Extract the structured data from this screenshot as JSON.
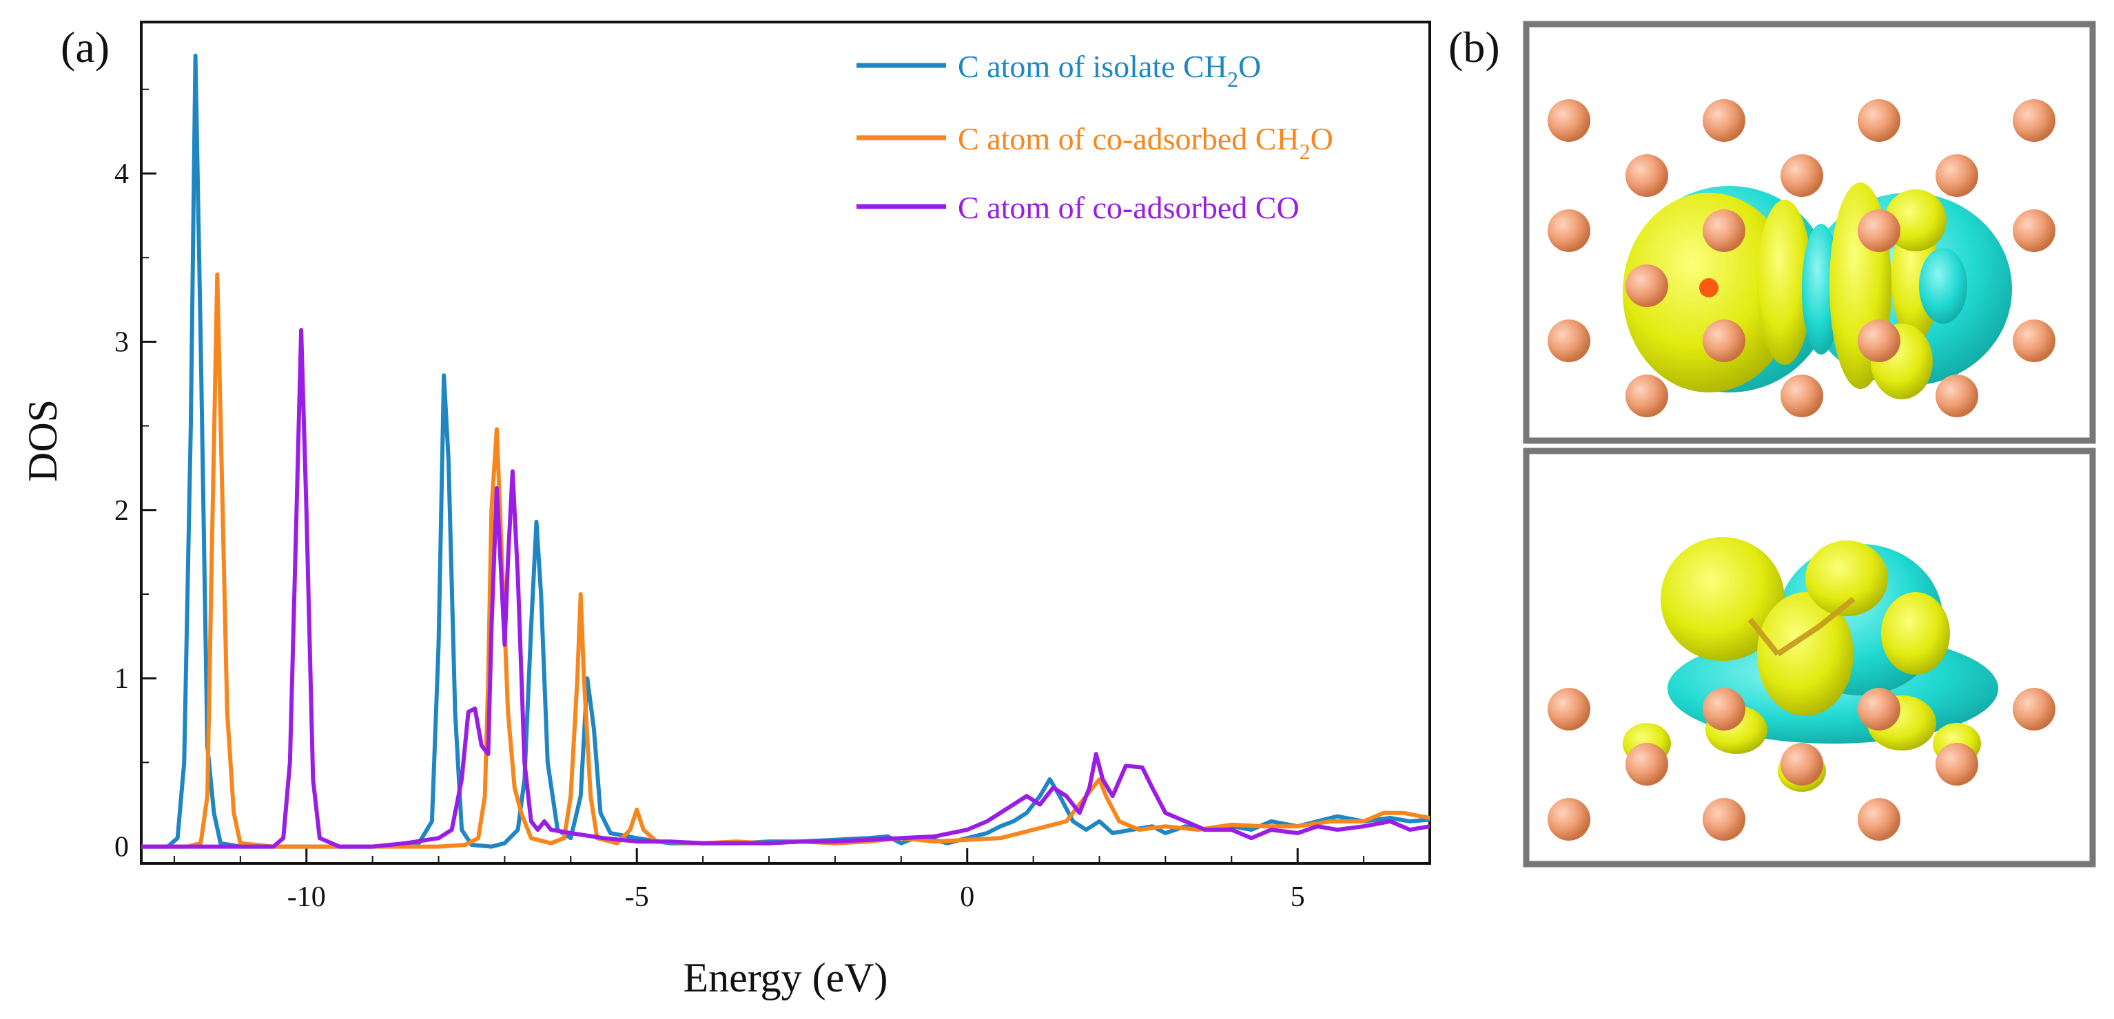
{
  "panel_a_label": "(a)",
  "panel_b_label": "(b)",
  "chart_data": {
    "type": "line",
    "title": "",
    "xlabel": "Energy (eV)",
    "ylabel": "DOS",
    "xlim": [
      -12.5,
      7
    ],
    "ylim": [
      -0.1,
      4.9
    ],
    "grid": false,
    "legend_position": "top-right",
    "x_ticks": [
      -10,
      -5,
      0,
      5
    ],
    "x_tick_labels": [
      "-10",
      "-5",
      "0",
      "5"
    ],
    "y_ticks": [
      0,
      1,
      2,
      3,
      4
    ],
    "y_tick_labels": [
      "0",
      "1",
      "2",
      "3",
      "4"
    ],
    "series": [
      {
        "name": "C atom of isolate CH2O",
        "legend_main": "C atom of isolate CH",
        "legend_sub": "2",
        "legend_tail": "O",
        "color": "#1f86c4",
        "points": [
          [
            -12.5,
            0
          ],
          [
            -12.1,
            0
          ],
          [
            -11.95,
            0.05
          ],
          [
            -11.85,
            0.5
          ],
          [
            -11.75,
            2.5
          ],
          [
            -11.68,
            4.7
          ],
          [
            -11.6,
            3.0
          ],
          [
            -11.5,
            0.6
          ],
          [
            -11.4,
            0.2
          ],
          [
            -11.3,
            0.02
          ],
          [
            -11.0,
            0
          ],
          [
            -10,
            0
          ],
          [
            -9,
            0
          ],
          [
            -8.3,
            0.02
          ],
          [
            -8.1,
            0.15
          ],
          [
            -8.0,
            1.2
          ],
          [
            -7.92,
            2.8
          ],
          [
            -7.85,
            2.3
          ],
          [
            -7.75,
            0.8
          ],
          [
            -7.65,
            0.1
          ],
          [
            -7.5,
            0.01
          ],
          [
            -7.2,
            0
          ],
          [
            -7.0,
            0.02
          ],
          [
            -6.8,
            0.1
          ],
          [
            -6.7,
            0.4
          ],
          [
            -6.6,
            1.3
          ],
          [
            -6.52,
            1.93
          ],
          [
            -6.45,
            1.5
          ],
          [
            -6.35,
            0.5
          ],
          [
            -6.2,
            0.1
          ],
          [
            -6.0,
            0.05
          ],
          [
            -5.85,
            0.3
          ],
          [
            -5.75,
            1.0
          ],
          [
            -5.65,
            0.7
          ],
          [
            -5.55,
            0.2
          ],
          [
            -5.4,
            0.08
          ],
          [
            -5.0,
            0.05
          ],
          [
            -4.5,
            0.02
          ],
          [
            -4.0,
            0.02
          ],
          [
            -3.5,
            0.02
          ],
          [
            -3.0,
            0.03
          ],
          [
            -2.5,
            0.03
          ],
          [
            -2.0,
            0.04
          ],
          [
            -1.5,
            0.05
          ],
          [
            -1.2,
            0.06
          ],
          [
            -1.0,
            0.02
          ],
          [
            -0.8,
            0.05
          ],
          [
            -0.5,
            0.04
          ],
          [
            -0.3,
            0.02
          ],
          [
            0,
            0.05
          ],
          [
            0.3,
            0.08
          ],
          [
            0.5,
            0.12
          ],
          [
            0.7,
            0.15
          ],
          [
            0.9,
            0.2
          ],
          [
            1.1,
            0.3
          ],
          [
            1.25,
            0.4
          ],
          [
            1.4,
            0.3
          ],
          [
            1.6,
            0.15
          ],
          [
            1.8,
            0.1
          ],
          [
            2.0,
            0.15
          ],
          [
            2.2,
            0.08
          ],
          [
            2.5,
            0.1
          ],
          [
            2.8,
            0.12
          ],
          [
            3.0,
            0.08
          ],
          [
            3.3,
            0.12
          ],
          [
            3.6,
            0.1
          ],
          [
            4.0,
            0.12
          ],
          [
            4.3,
            0.1
          ],
          [
            4.6,
            0.15
          ],
          [
            5.0,
            0.12
          ],
          [
            5.3,
            0.15
          ],
          [
            5.6,
            0.18
          ],
          [
            6.0,
            0.15
          ],
          [
            6.4,
            0.17
          ],
          [
            6.7,
            0.15
          ],
          [
            7.0,
            0.16
          ]
        ]
      },
      {
        "name": "C atom of co-adsorbed CH2O",
        "legend_main": "C atom of co-adsorbed CH",
        "legend_sub": "2",
        "legend_tail": "O",
        "color": "#f7861d",
        "points": [
          [
            -12.5,
            0
          ],
          [
            -11.8,
            0
          ],
          [
            -11.6,
            0.02
          ],
          [
            -11.5,
            0.3
          ],
          [
            -11.42,
            2.0
          ],
          [
            -11.35,
            3.4
          ],
          [
            -11.28,
            2.2
          ],
          [
            -11.2,
            0.8
          ],
          [
            -11.1,
            0.2
          ],
          [
            -11.0,
            0.02
          ],
          [
            -10.5,
            0
          ],
          [
            -10,
            0
          ],
          [
            -9,
            0
          ],
          [
            -8,
            0
          ],
          [
            -7.6,
            0.01
          ],
          [
            -7.4,
            0.05
          ],
          [
            -7.3,
            0.3
          ],
          [
            -7.25,
            1.0
          ],
          [
            -7.2,
            2.0
          ],
          [
            -7.12,
            2.48
          ],
          [
            -7.05,
            1.8
          ],
          [
            -6.95,
            0.8
          ],
          [
            -6.85,
            0.35
          ],
          [
            -6.75,
            0.2
          ],
          [
            -6.6,
            0.05
          ],
          [
            -6.3,
            0.02
          ],
          [
            -6.1,
            0.05
          ],
          [
            -6.0,
            0.3
          ],
          [
            -5.9,
            1.0
          ],
          [
            -5.85,
            1.5
          ],
          [
            -5.8,
            1.0
          ],
          [
            -5.7,
            0.3
          ],
          [
            -5.6,
            0.05
          ],
          [
            -5.3,
            0.02
          ],
          [
            -5.1,
            0.1
          ],
          [
            -5.0,
            0.22
          ],
          [
            -4.9,
            0.1
          ],
          [
            -4.7,
            0.03
          ],
          [
            -4.0,
            0.02
          ],
          [
            -3.5,
            0.03
          ],
          [
            -3.0,
            0.02
          ],
          [
            -2.5,
            0.03
          ],
          [
            -2.0,
            0.02
          ],
          [
            -1.5,
            0.03
          ],
          [
            -1.0,
            0.05
          ],
          [
            -0.5,
            0.03
          ],
          [
            0,
            0.04
          ],
          [
            0.5,
            0.05
          ],
          [
            1.0,
            0.1
          ],
          [
            1.5,
            0.15
          ],
          [
            1.8,
            0.3
          ],
          [
            2.0,
            0.4
          ],
          [
            2.1,
            0.3
          ],
          [
            2.3,
            0.15
          ],
          [
            2.6,
            0.1
          ],
          [
            3.0,
            0.12
          ],
          [
            3.5,
            0.1
          ],
          [
            4.0,
            0.13
          ],
          [
            4.5,
            0.12
          ],
          [
            5.0,
            0.12
          ],
          [
            5.5,
            0.15
          ],
          [
            6.0,
            0.15
          ],
          [
            6.3,
            0.2
          ],
          [
            6.6,
            0.2
          ],
          [
            7.0,
            0.17
          ]
        ]
      },
      {
        "name": "C atom of co-adsorbed CO",
        "legend_main": "C atom of co-adsorbed CO",
        "legend_sub": "",
        "legend_tail": "",
        "color": "#9a1de6",
        "points": [
          [
            -12.5,
            0
          ],
          [
            -11,
            0
          ],
          [
            -10.5,
            0
          ],
          [
            -10.35,
            0.05
          ],
          [
            -10.25,
            0.5
          ],
          [
            -10.15,
            2.0
          ],
          [
            -10.08,
            3.07
          ],
          [
            -10.0,
            2.0
          ],
          [
            -9.9,
            0.4
          ],
          [
            -9.8,
            0.05
          ],
          [
            -9.5,
            0
          ],
          [
            -9,
            0
          ],
          [
            -8.5,
            0.02
          ],
          [
            -8.0,
            0.05
          ],
          [
            -7.8,
            0.1
          ],
          [
            -7.65,
            0.4
          ],
          [
            -7.55,
            0.8
          ],
          [
            -7.45,
            0.82
          ],
          [
            -7.35,
            0.6
          ],
          [
            -7.25,
            0.55
          ],
          [
            -7.2,
            1.3
          ],
          [
            -7.12,
            2.13
          ],
          [
            -7.05,
            1.6
          ],
          [
            -7.0,
            1.2
          ],
          [
            -6.95,
            1.7
          ],
          [
            -6.88,
            2.23
          ],
          [
            -6.8,
            1.6
          ],
          [
            -6.7,
            0.5
          ],
          [
            -6.6,
            0.15
          ],
          [
            -6.5,
            0.1
          ],
          [
            -6.4,
            0.15
          ],
          [
            -6.3,
            0.1
          ],
          [
            -6.0,
            0.08
          ],
          [
            -5.5,
            0.05
          ],
          [
            -5.0,
            0.03
          ],
          [
            -4.5,
            0.03
          ],
          [
            -4.0,
            0.02
          ],
          [
            -3.5,
            0.02
          ],
          [
            -3.0,
            0.02
          ],
          [
            -2.5,
            0.03
          ],
          [
            -2.0,
            0.03
          ],
          [
            -1.5,
            0.04
          ],
          [
            -1.0,
            0.05
          ],
          [
            -0.5,
            0.06
          ],
          [
            0,
            0.1
          ],
          [
            0.3,
            0.15
          ],
          [
            0.5,
            0.2
          ],
          [
            0.7,
            0.25
          ],
          [
            0.9,
            0.3
          ],
          [
            1.1,
            0.25
          ],
          [
            1.3,
            0.35
          ],
          [
            1.5,
            0.3
          ],
          [
            1.7,
            0.2
          ],
          [
            1.85,
            0.35
          ],
          [
            1.95,
            0.55
          ],
          [
            2.05,
            0.4
          ],
          [
            2.2,
            0.3
          ],
          [
            2.4,
            0.48
          ],
          [
            2.65,
            0.47
          ],
          [
            2.8,
            0.35
          ],
          [
            3.0,
            0.2
          ],
          [
            3.3,
            0.15
          ],
          [
            3.6,
            0.1
          ],
          [
            4.0,
            0.1
          ],
          [
            4.3,
            0.05
          ],
          [
            4.6,
            0.1
          ],
          [
            5.0,
            0.08
          ],
          [
            5.3,
            0.12
          ],
          [
            5.6,
            0.1
          ],
          [
            6.0,
            0.12
          ],
          [
            6.4,
            0.15
          ],
          [
            6.7,
            0.1
          ],
          [
            7.0,
            0.12
          ]
        ]
      }
    ]
  },
  "panel_b": {
    "top": {
      "cu_color": "#f0a077",
      "center_atom_color": "#ff5a14",
      "lobe_yellow": "#e2ea10",
      "lobe_cyan": "#21d9d2"
    },
    "bottom": {
      "cu_color": "#f0a077",
      "lobe_yellow": "#f2f20a",
      "lobe_cyan": "#21d9d2"
    }
  }
}
